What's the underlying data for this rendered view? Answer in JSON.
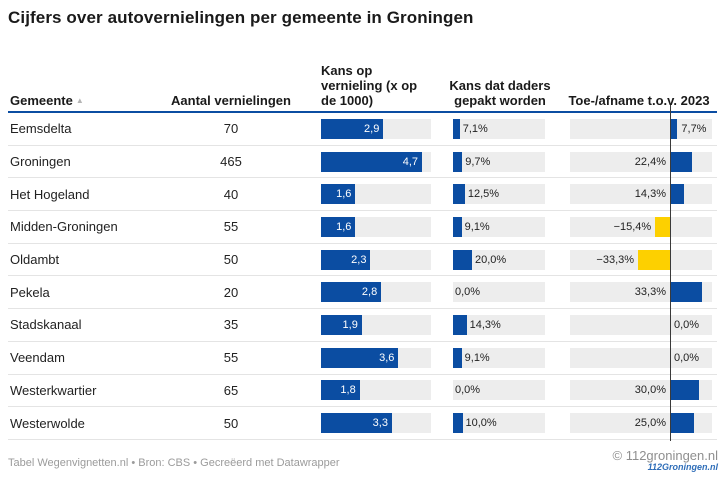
{
  "title": "Cijfers over autovernielingen per gemeente in Groningen",
  "colors": {
    "bar_blue": "#0b4da2",
    "bar_yellow": "#fdd000",
    "track_gray": "#ededed",
    "header_rule_blue": "#0b4da2",
    "zero_line": "#3a3a3a"
  },
  "header": {
    "gemeente": "Gemeente",
    "sort_icon": "▲",
    "aantal": "Aantal vernielingen",
    "kans_vernieling": "Kans op vernieling (x op de 1000)",
    "kans_gepakt": "Kans dat daders gepakt worden",
    "toe_afname": "Toe-/afname t.o.v. 2023"
  },
  "chart_data": {
    "type": "table",
    "title": "Cijfers over autovernielingen per gemeente in Groningen",
    "columns": [
      "Gemeente",
      "Aantal vernielingen",
      "Kans op vernieling (x op de 1000)",
      "Kans dat daders gepakt worden",
      "Toe-/afname t.o.v. 2023"
    ],
    "bar_axes": {
      "kans_vernieling_max": 4.7,
      "kans_gepakt_scale_max": 100,
      "toe_afname_min": -33.3,
      "toe_afname_max": 33.3
    },
    "rows": [
      {
        "gemeente": "Eemsdelta",
        "aantal": "70",
        "kans_vernieling": 2.9,
        "kans_vernieling_label": "2,9",
        "kans_gepakt": 7.1,
        "kans_gepakt_label": "7,1%",
        "toe_afname": 7.7,
        "toe_afname_label": "7,7%",
        "toe_afname_label_side": "right"
      },
      {
        "gemeente": "Groningen",
        "aantal": "465",
        "kans_vernieling": 4.7,
        "kans_vernieling_label": "4,7",
        "kans_gepakt": 9.7,
        "kans_gepakt_label": "9,7%",
        "toe_afname": 22.4,
        "toe_afname_label": "22,4%",
        "toe_afname_label_side": "left"
      },
      {
        "gemeente": "Het Hogeland",
        "aantal": "40",
        "kans_vernieling": 1.6,
        "kans_vernieling_label": "1,6",
        "kans_gepakt": 12.5,
        "kans_gepakt_label": "12,5%",
        "toe_afname": 14.3,
        "toe_afname_label": "14,3%",
        "toe_afname_label_side": "left"
      },
      {
        "gemeente": "Midden-Groningen",
        "aantal": "55",
        "kans_vernieling": 1.6,
        "kans_vernieling_label": "1,6",
        "kans_gepakt": 9.1,
        "kans_gepakt_label": "9,1%",
        "toe_afname": -15.4,
        "toe_afname_label": "−15,4%",
        "toe_afname_label_side": "left"
      },
      {
        "gemeente": "Oldambt",
        "aantal": "50",
        "kans_vernieling": 2.3,
        "kans_vernieling_label": "2,3",
        "kans_gepakt": 20.0,
        "kans_gepakt_label": "20,0%",
        "toe_afname": -33.3,
        "toe_afname_label": "−33,3%",
        "toe_afname_label_side": "left"
      },
      {
        "gemeente": "Pekela",
        "aantal": "20",
        "kans_vernieling": 2.8,
        "kans_vernieling_label": "2,8",
        "kans_gepakt": 0.0,
        "kans_gepakt_label": "0,0%",
        "toe_afname": 33.3,
        "toe_afname_label": "33,3%",
        "toe_afname_label_side": "left"
      },
      {
        "gemeente": "Stadskanaal",
        "aantal": "35",
        "kans_vernieling": 1.9,
        "kans_vernieling_label": "1,9",
        "kans_gepakt": 14.3,
        "kans_gepakt_label": "14,3%",
        "toe_afname": 0.0,
        "toe_afname_label": "0,0%",
        "toe_afname_label_side": "right"
      },
      {
        "gemeente": "Veendam",
        "aantal": "55",
        "kans_vernieling": 3.6,
        "kans_vernieling_label": "3,6",
        "kans_gepakt": 9.1,
        "kans_gepakt_label": "9,1%",
        "toe_afname": 0.0,
        "toe_afname_label": "0,0%",
        "toe_afname_label_side": "right"
      },
      {
        "gemeente": "Westerkwartier",
        "aantal": "65",
        "kans_vernieling": 1.8,
        "kans_vernieling_label": "1,8",
        "kans_gepakt": 0.0,
        "kans_gepakt_label": "0,0%",
        "toe_afname": 30.0,
        "toe_afname_label": "30,0%",
        "toe_afname_label_side": "left"
      },
      {
        "gemeente": "Westerwolde",
        "aantal": "50",
        "kans_vernieling": 3.3,
        "kans_vernieling_label": "3,3",
        "kans_gepakt": 10.0,
        "kans_gepakt_label": "10,0%",
        "toe_afname": 25.0,
        "toe_afname_label": "25,0%",
        "toe_afname_label_side": "left"
      }
    ]
  },
  "footer": {
    "credit": "Tabel Wegenvignetten.nl • Bron: CBS • Gecreëerd met Datawrapper"
  },
  "watermark": {
    "copyright": "© 112groningen.nl",
    "logo": "112Groningen.nl"
  }
}
